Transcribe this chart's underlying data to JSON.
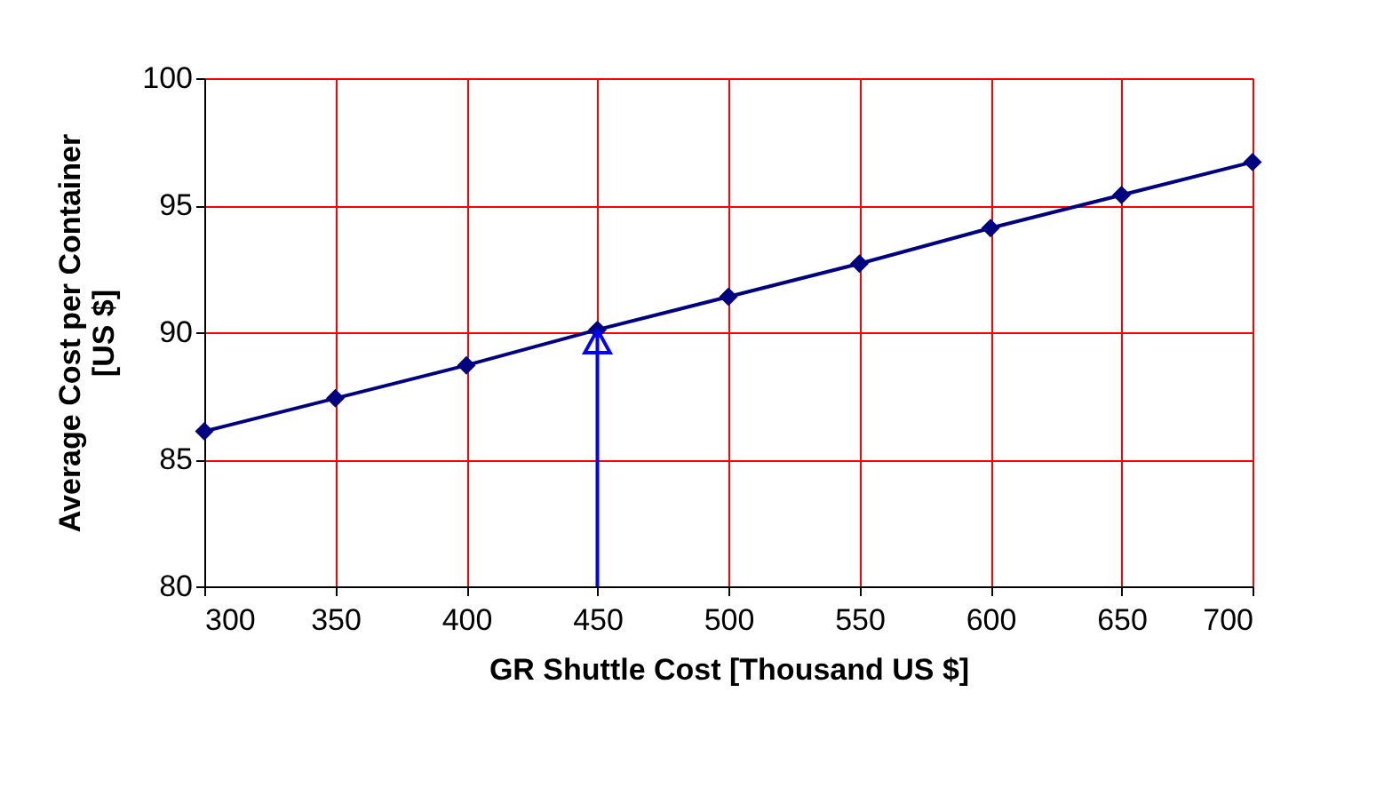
{
  "chart_data": {
    "type": "line",
    "xlabel": "GR Shuttle Cost [Thousand US $]",
    "ylabel": "Average Cost per Container [US $]",
    "x": [
      300,
      350,
      400,
      450,
      500,
      550,
      600,
      650,
      700
    ],
    "series": [
      {
        "color": "#000080",
        "values": [
          86.1,
          87.4,
          88.7,
          90.1,
          91.4,
          92.7,
          94.1,
          95.4,
          96.7
        ]
      }
    ],
    "xlim": [
      300,
      700
    ],
    "xticks": [
      300,
      350,
      400,
      450,
      500,
      550,
      600,
      650,
      700
    ],
    "ylim": [
      80,
      100
    ],
    "yticks": [
      80,
      85,
      90,
      95,
      100
    ],
    "grid": true,
    "marker": "diamond",
    "line_style": "solid",
    "ref_lines": [
      {
        "axis": "x",
        "value": 450,
        "color": "#0000ff"
      }
    ]
  }
}
